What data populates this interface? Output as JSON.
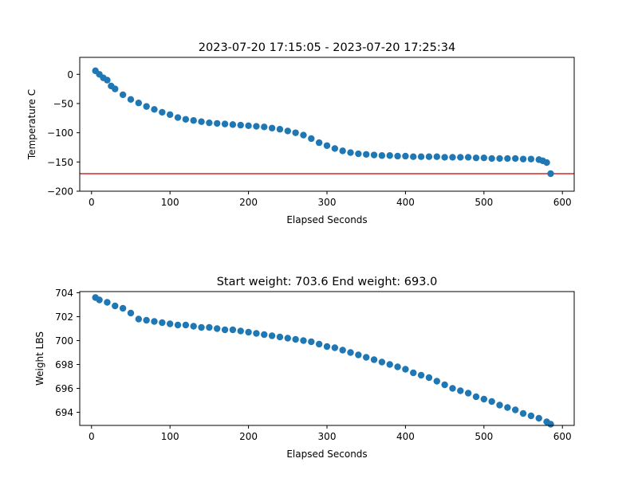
{
  "chart_data": [
    {
      "type": "scatter",
      "title": "2023-07-20 17:15:05 - 2023-07-20 17:25:34",
      "xlabel": "Elapsed Seconds",
      "ylabel": "Temperature C",
      "xlim": [
        -15,
        615
      ],
      "ylim": [
        -200,
        29
      ],
      "xticks": [
        0,
        100,
        200,
        300,
        400,
        500,
        600
      ],
      "yticks": [
        0,
        -50,
        -100,
        -150,
        -200
      ],
      "grid": false,
      "marker_color": "#1f77b4",
      "reference_line": {
        "y": -170,
        "color": "#d62728"
      },
      "series": [
        {
          "x": [
            5,
            10,
            15,
            20,
            25,
            30,
            40,
            50,
            60,
            70,
            80,
            90,
            100,
            110,
            120,
            130,
            140,
            150,
            160,
            170,
            180,
            190,
            200,
            210,
            220,
            230,
            240,
            250,
            260,
            270,
            280,
            290,
            300,
            310,
            320,
            330,
            340,
            350,
            360,
            370,
            380,
            390,
            400,
            410,
            420,
            430,
            440,
            450,
            460,
            470,
            480,
            490,
            500,
            510,
            520,
            530,
            540,
            550,
            560,
            570,
            575,
            580,
            585
          ],
          "y": [
            6,
            0,
            -6,
            -10,
            -20,
            -25,
            -35,
            -43,
            -49,
            -55,
            -60,
            -65,
            -69,
            -74,
            -77,
            -79,
            -81,
            -83,
            -84,
            -85,
            -86,
            -87,
            -88,
            -89,
            -90,
            -92,
            -94,
            -97,
            -100,
            -104,
            -110,
            -117,
            -122,
            -127,
            -131,
            -134,
            -136,
            -137,
            -138,
            -139,
            -139,
            -140,
            -140,
            -141,
            -141,
            -141,
            -141,
            -142,
            -142,
            -142,
            -142,
            -143,
            -143,
            -144,
            -144,
            -144,
            -144,
            -145,
            -145,
            -146,
            -148,
            -151,
            -170
          ]
        }
      ]
    },
    {
      "type": "scatter",
      "title": "Start weight: 703.6 End weight: 693.0",
      "xlabel": "Elapsed Seconds",
      "ylabel": "Weight LBS",
      "xlim": [
        -15,
        615
      ],
      "ylim": [
        692.9,
        704.1
      ],
      "xticks": [
        0,
        100,
        200,
        300,
        400,
        500,
        600
      ],
      "yticks": [
        694,
        696,
        698,
        700,
        702,
        704
      ],
      "grid": false,
      "marker_color": "#1f77b4",
      "series": [
        {
          "x": [
            5,
            10,
            20,
            30,
            40,
            50,
            60,
            70,
            80,
            90,
            100,
            110,
            120,
            130,
            140,
            150,
            160,
            170,
            180,
            190,
            200,
            210,
            220,
            230,
            240,
            250,
            260,
            270,
            280,
            290,
            300,
            310,
            320,
            330,
            340,
            350,
            360,
            370,
            380,
            390,
            400,
            410,
            420,
            430,
            440,
            450,
            460,
            470,
            480,
            490,
            500,
            510,
            520,
            530,
            540,
            550,
            560,
            570,
            580,
            585
          ],
          "y": [
            703.6,
            703.4,
            703.2,
            702.9,
            702.7,
            702.3,
            701.8,
            701.7,
            701.6,
            701.5,
            701.4,
            701.3,
            701.3,
            701.2,
            701.1,
            701.1,
            701.0,
            700.9,
            700.9,
            700.8,
            700.7,
            700.6,
            700.5,
            700.4,
            700.3,
            700.2,
            700.1,
            700.0,
            699.9,
            699.7,
            699.5,
            699.4,
            699.2,
            699.0,
            698.8,
            698.6,
            698.4,
            698.2,
            698.0,
            697.8,
            697.6,
            697.3,
            697.1,
            696.9,
            696.6,
            696.3,
            696.0,
            695.8,
            695.6,
            695.3,
            695.1,
            694.9,
            694.6,
            694.4,
            694.2,
            693.9,
            693.7,
            693.5,
            693.2,
            693.0
          ]
        }
      ]
    }
  ]
}
